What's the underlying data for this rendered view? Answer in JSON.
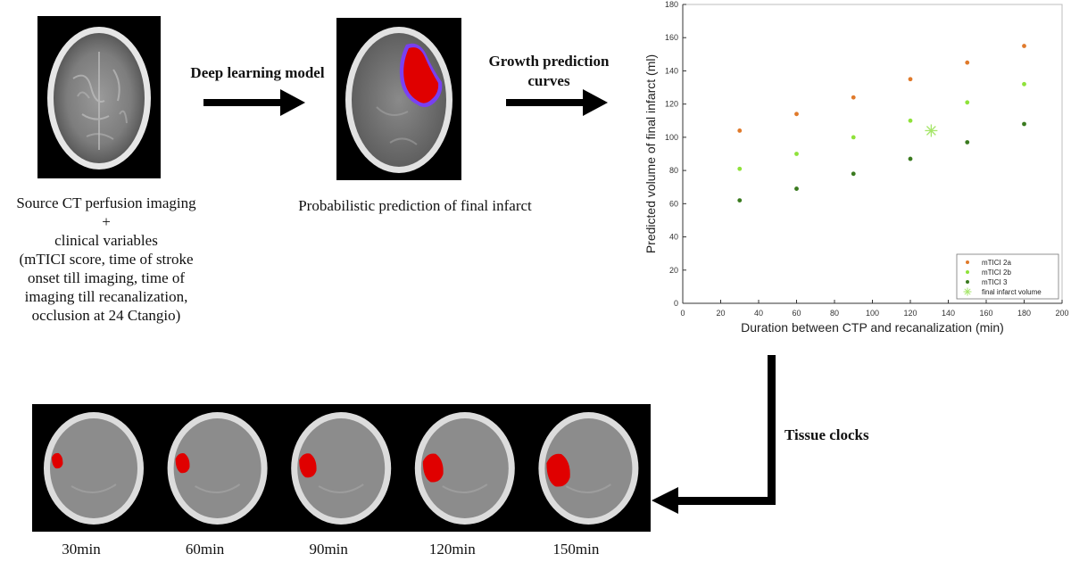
{
  "step_labels": {
    "deep_learning": "Deep learning model",
    "growth_line1": "Growth prediction",
    "growth_line2": "curves",
    "tissue_clocks": "Tissue clocks"
  },
  "captions": {
    "source_lines": [
      "Source CT perfusion imaging",
      "+",
      "clinical variables",
      "(mTICI score, time of stroke",
      "onset till imaging, time of",
      "imaging till recanalization,",
      "occlusion at 24 Ctangio)"
    ],
    "prediction": "Probabilistic prediction of final infarct"
  },
  "time_labels": [
    "30min",
    "60min",
    "90min",
    "120min",
    "150min"
  ],
  "colors": {
    "mtici_2a": "#e07a2b",
    "mtici_2b": "#8fe23a",
    "mtici_3": "#3a7a1f",
    "final": "#a6e66a",
    "infarct_red": "#e00000"
  },
  "chart_data": {
    "type": "scatter",
    "xlabel": "Duration between CTP and recanalization (min)",
    "ylabel": "Predicted volume of final infarct (ml)",
    "xlim": [
      0,
      200
    ],
    "ylim": [
      0,
      180
    ],
    "xticks": [
      0,
      20,
      40,
      60,
      80,
      100,
      120,
      140,
      160,
      180,
      200
    ],
    "yticks": [
      0,
      20,
      40,
      60,
      80,
      100,
      120,
      140,
      160,
      180
    ],
    "legend_position": "bottom-right",
    "series": [
      {
        "name": "mTICI 2a",
        "marker": "dot",
        "x": [
          30,
          60,
          90,
          120,
          150,
          180
        ],
        "y": [
          104,
          114,
          124,
          135,
          145,
          155
        ]
      },
      {
        "name": "mTICI 2b",
        "marker": "dot",
        "x": [
          30,
          60,
          90,
          120,
          150,
          180
        ],
        "y": [
          81,
          90,
          100,
          110,
          121,
          132
        ]
      },
      {
        "name": "mTICI 3",
        "marker": "dot",
        "x": [
          30,
          60,
          90,
          120,
          150,
          180
        ],
        "y": [
          62,
          69,
          78,
          87,
          97,
          108
        ]
      },
      {
        "name": "final infarct volume",
        "marker": "star",
        "x": [
          131
        ],
        "y": [
          104
        ]
      }
    ]
  }
}
